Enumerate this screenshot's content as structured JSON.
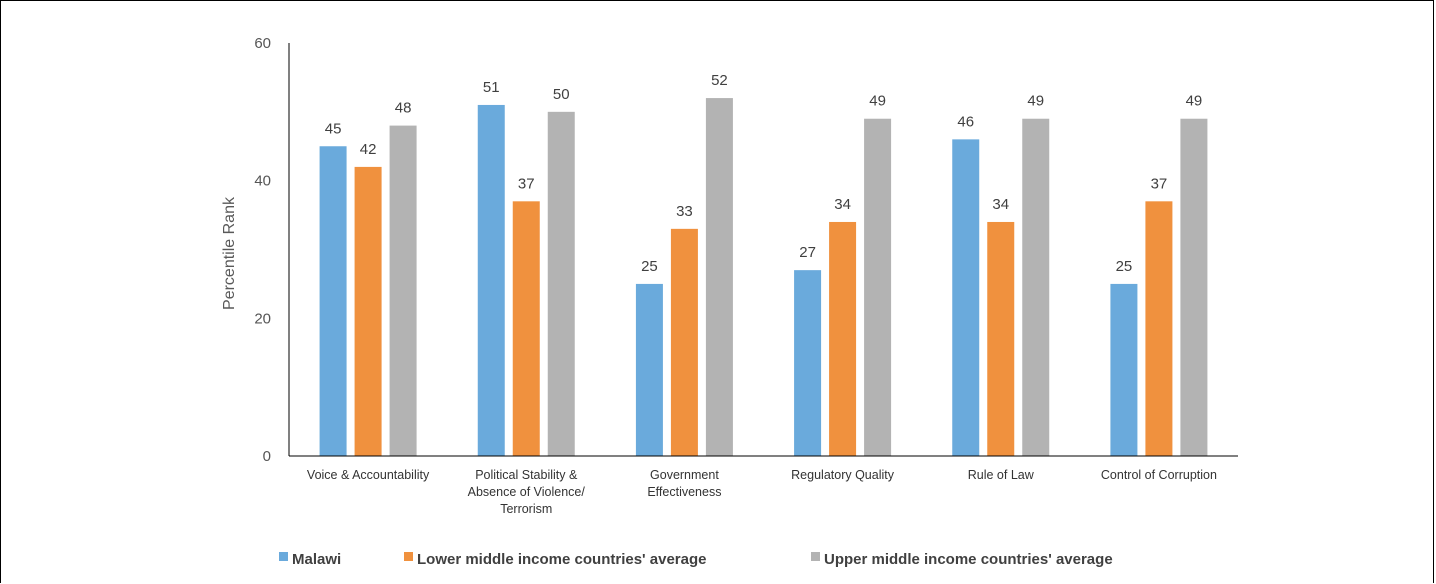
{
  "chart_data": {
    "type": "bar",
    "ylabel": "Percentile Rank",
    "ylim": [
      0,
      60
    ],
    "yticks": [
      0,
      20,
      40,
      60
    ],
    "categories": [
      [
        "Voice & Accountability"
      ],
      [
        "Political Stability &",
        "Absence of Violence/",
        "Terrorism"
      ],
      [
        "Government",
        "Effectiveness"
      ],
      [
        "Regulatory Quality"
      ],
      [
        "Rule of Law"
      ],
      [
        "Control of Corruption"
      ]
    ],
    "series": [
      {
        "name": "Malawi",
        "color": "#6aaadc",
        "values": [
          45,
          51,
          25,
          27,
          46,
          25
        ]
      },
      {
        "name": "Lower middle income countries' average",
        "color": "#f0913e",
        "values": [
          42,
          37,
          33,
          34,
          34,
          37
        ]
      },
      {
        "name": "Upper middle income countries' average",
        "color": "#b3b3b3",
        "values": [
          48,
          50,
          52,
          49,
          49,
          49
        ]
      }
    ],
    "legend_position": "bottom",
    "grid": false
  }
}
